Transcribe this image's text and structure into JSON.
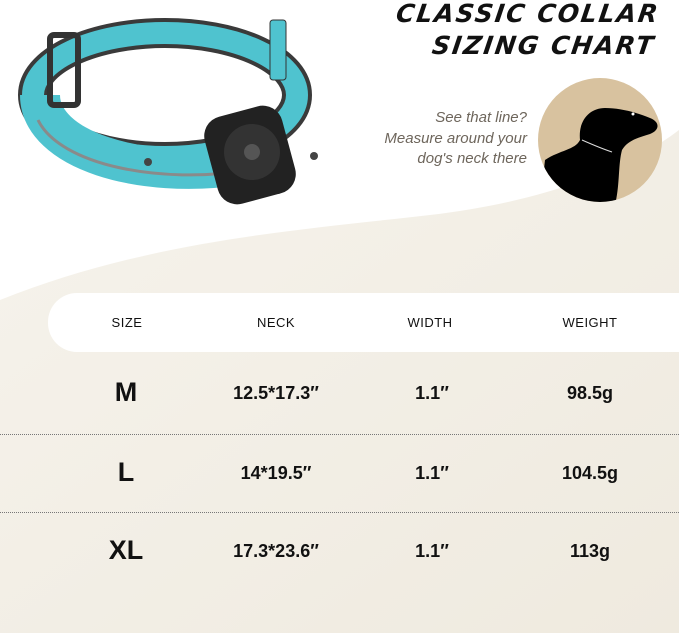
{
  "title": {
    "line1": "CLASSIC COLLAR",
    "line2": "SIZING CHART"
  },
  "hint": {
    "line1": "See that line?",
    "line2": "Measure around your",
    "line3": "dog's neck there"
  },
  "colors": {
    "collar": "#4fc3cf",
    "circle": "#d8c29f",
    "background": "#f2eee4"
  },
  "table": {
    "headers": [
      "SIZE",
      "NECK",
      "WIDTH",
      "WEIGHT"
    ],
    "rows": [
      {
        "size": "M",
        "neck": "12.5*17.3″",
        "width": "1.1″",
        "weight": "98.5g"
      },
      {
        "size": "L",
        "neck": "14*19.5″",
        "width": "1.1″",
        "weight": "104.5g"
      },
      {
        "size": "XL",
        "neck": "17.3*23.6″",
        "width": "1.1″",
        "weight": "113g"
      }
    ]
  }
}
